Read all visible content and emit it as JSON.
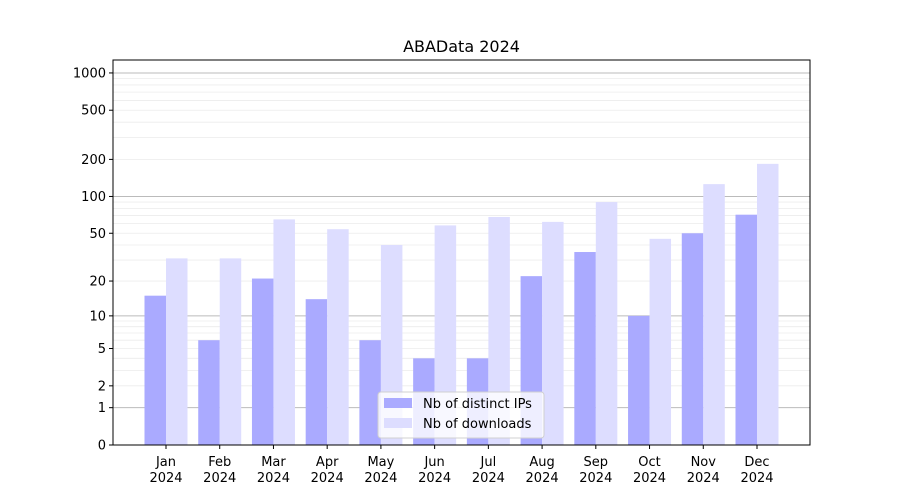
{
  "chart_data": {
    "type": "bar",
    "title": "ABAData 2024",
    "xlabel": "",
    "ylabel": "",
    "yscale": "log10(1+y)",
    "ylim": [
      0,
      1300
    ],
    "yticks": [
      0,
      1,
      2,
      5,
      10,
      20,
      50,
      100,
      200,
      500,
      1000
    ],
    "grid": true,
    "legend_position": "lower-center",
    "categories": [
      "Jan\n2024",
      "Feb\n2024",
      "Mar\n2024",
      "Apr\n2024",
      "May\n2024",
      "Jun\n2024",
      "Jul\n2024",
      "Aug\n2024",
      "Sep\n2024",
      "Oct\n2024",
      "Nov\n2024",
      "Dec\n2024"
    ],
    "series": [
      {
        "name": "Nb of distinct IPs",
        "color": "#aaaaff",
        "values": [
          15,
          6,
          21,
          14,
          6,
          4,
          4,
          22,
          35,
          10,
          50,
          71
        ]
      },
      {
        "name": "Nb of downloads",
        "color": "#ddddff",
        "values": [
          31,
          31,
          65,
          54,
          40,
          58,
          68,
          62,
          90,
          45,
          126,
          184
        ]
      }
    ]
  }
}
